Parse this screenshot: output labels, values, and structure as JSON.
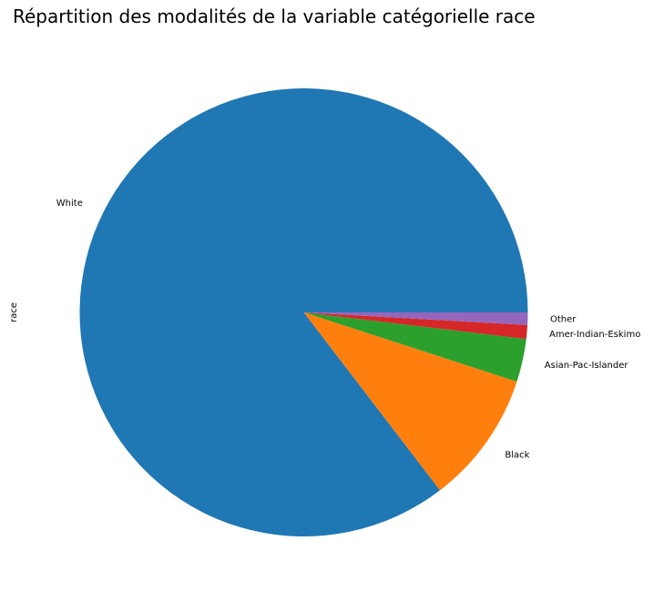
{
  "chart_data": {
    "type": "pie",
    "title": "Répartition des modalités de la variable catégorielle race",
    "ylabel": "race",
    "start_angle_deg": 0,
    "direction": "counterclockwise",
    "slices": [
      {
        "label": " White",
        "value": 85.4,
        "color": "#1f77b4"
      },
      {
        "label": " Black",
        "value": 9.6,
        "color": "#ff7f0e"
      },
      {
        "label": " Asian-Pac-Islander",
        "value": 3.1,
        "color": "#2ca02c"
      },
      {
        "label": " Amer-Indian-Eskimo",
        "value": 1.0,
        "color": "#d62728"
      },
      {
        "label": " Other",
        "value": 0.9,
        "color": "#9467bd"
      }
    ]
  }
}
